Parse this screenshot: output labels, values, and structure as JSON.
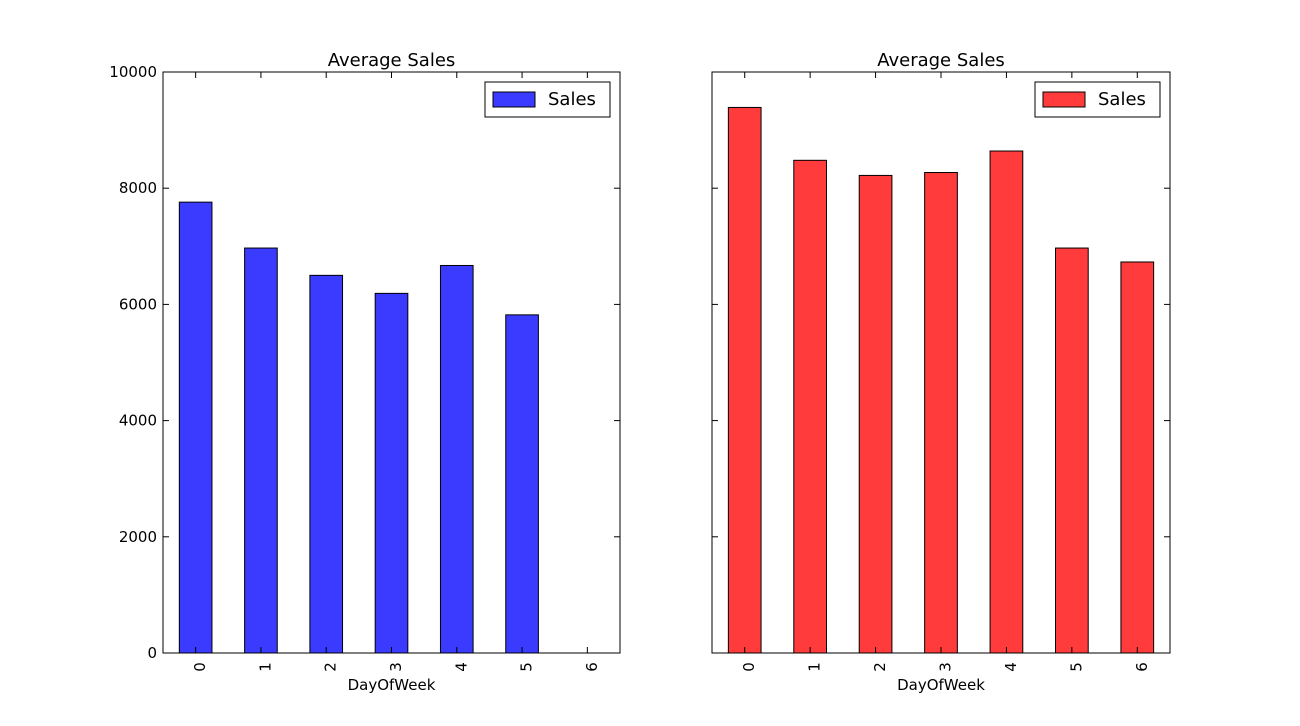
{
  "chart_data": [
    {
      "type": "bar",
      "title": "Average Sales",
      "xlabel": "DayOfWeek",
      "ylabel": "",
      "categories": [
        "0",
        "1",
        "2",
        "3",
        "4",
        "5",
        "6"
      ],
      "series": [
        {
          "name": "Sales",
          "values": [
            7760,
            6970,
            6500,
            6190,
            6670,
            5820,
            0
          ]
        }
      ],
      "ylim": [
        0,
        10000
      ],
      "yticks": [
        "0",
        "2000",
        "4000",
        "6000",
        "8000",
        "10000"
      ],
      "ytick_labels_shown": true,
      "color": "#3b3bff",
      "legend_position": "top-right",
      "grid": false
    },
    {
      "type": "bar",
      "title": "Average Sales",
      "xlabel": "DayOfWeek",
      "ylabel": "",
      "categories": [
        "0",
        "1",
        "2",
        "3",
        "4",
        "5",
        "6"
      ],
      "series": [
        {
          "name": "Sales",
          "values": [
            9390,
            8480,
            8220,
            8270,
            8640,
            6970,
            6730
          ]
        }
      ],
      "ylim": [
        0,
        10000
      ],
      "yticks": [
        "0",
        "2000",
        "4000",
        "6000",
        "8000",
        "10000"
      ],
      "ytick_labels_shown": false,
      "color": "#ff3b3b",
      "legend_position": "top-right",
      "grid": false
    }
  ]
}
